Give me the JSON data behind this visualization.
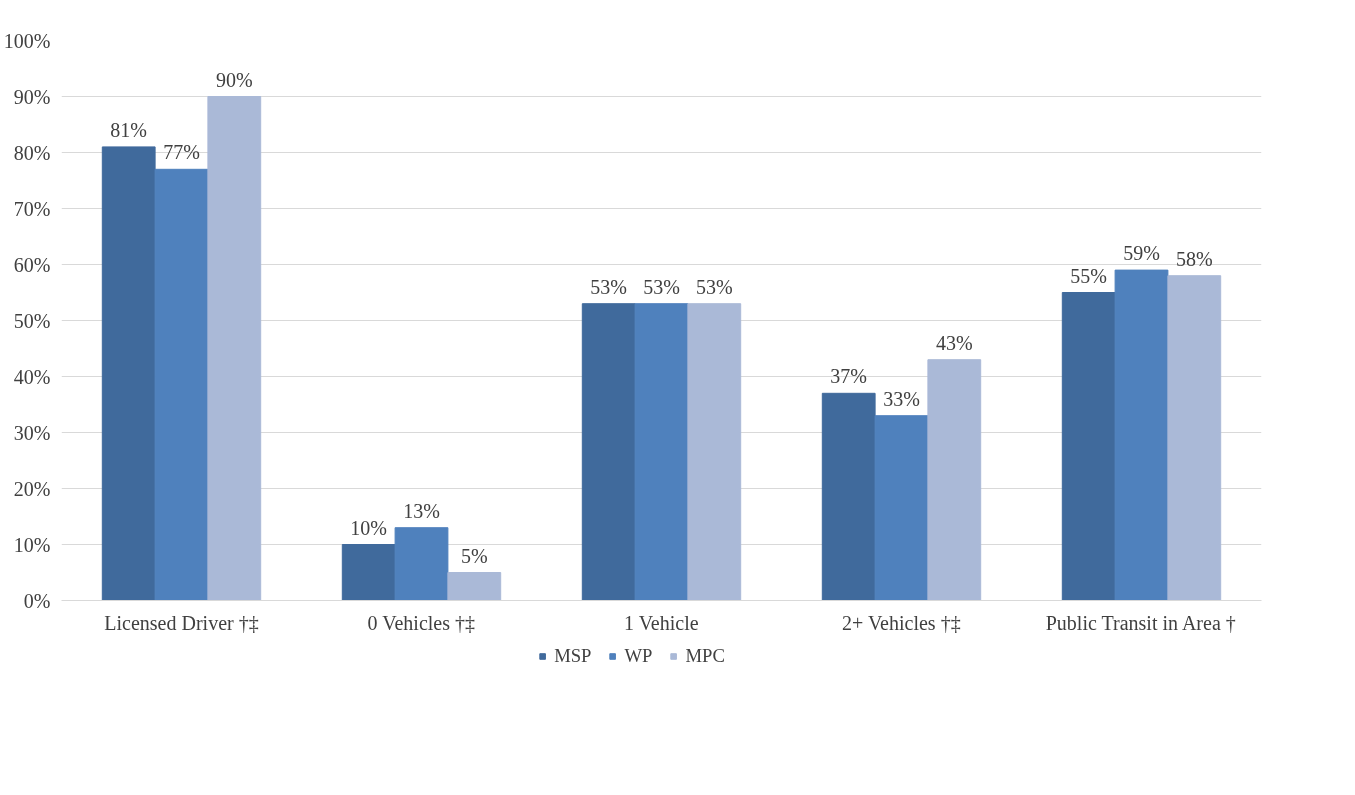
{
  "chart_data": {
    "type": "bar",
    "categories": [
      "Licensed Driver †‡",
      "0 Vehicles †‡",
      "1 Vehicle",
      "2+ Vehicles †‡",
      "Public Transit in Area †"
    ],
    "series": [
      {
        "name": "MSP",
        "color": "#406a9c",
        "values": [
          81,
          10,
          53,
          37,
          55
        ],
        "value_labels": [
          "81%",
          "10%",
          "53%",
          "37%",
          "55%"
        ]
      },
      {
        "name": "WP",
        "color": "#4f81bd",
        "values": [
          77,
          13,
          53,
          33,
          59
        ],
        "value_labels": [
          "77%",
          "13%",
          "53%",
          "33%",
          "59%"
        ]
      },
      {
        "name": "MPC",
        "color": "#aab9d7",
        "values": [
          90,
          5,
          53,
          43,
          58
        ],
        "value_labels": [
          "90%",
          "5%",
          "53%",
          "43%",
          "58%"
        ]
      }
    ],
    "ylim": [
      0,
      100
    ],
    "yticks": [
      {
        "value": 0,
        "label": "0%"
      },
      {
        "value": 10,
        "label": "10%"
      },
      {
        "value": 20,
        "label": "20%"
      },
      {
        "value": 30,
        "label": "30%"
      },
      {
        "value": 40,
        "label": "40%"
      },
      {
        "value": 50,
        "label": "50%"
      },
      {
        "value": 60,
        "label": "60%"
      },
      {
        "value": 70,
        "label": "70%"
      },
      {
        "value": 80,
        "label": "80%"
      },
      {
        "value": 90,
        "label": "90%"
      },
      {
        "value": 100,
        "label": "100%"
      }
    ],
    "grid": "y",
    "legend": "bottom"
  }
}
